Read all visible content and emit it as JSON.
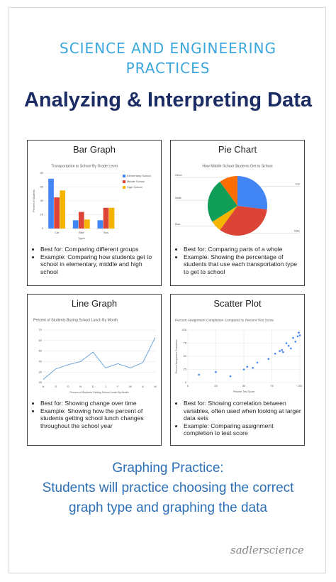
{
  "header": {
    "subtitle_lines": [
      "SCIENCE AND ENGINEERING",
      "PRACTICES"
    ],
    "title": "Analyzing & Interpreting Data"
  },
  "panels": [
    {
      "heading": "Bar Graph",
      "chart": {
        "type": "bar",
        "title": "Transportation to School By Grade Level",
        "xlabel": "Types",
        "ylabel": "Percent of Students",
        "categories": [
          "Car",
          "Bike",
          "Bus"
        ],
        "series": [
          {
            "name": "Elementary School",
            "color": "#4285f4",
            "values": [
              72,
              12,
              12
            ]
          },
          {
            "name": "Middle School",
            "color": "#db4437",
            "values": [
              45,
              24,
              30
            ]
          },
          {
            "name": "High School",
            "color": "#f4b400",
            "values": [
              55,
              13,
              30
            ]
          }
        ],
        "ylim": [
          0,
          80
        ],
        "yticks": [
          0,
          20,
          40,
          60,
          80
        ],
        "grid": true
      },
      "bullets": [
        "Best for: Comparing different groups",
        "Example: Comparing how students get to school in elementary, middle and high school"
      ]
    },
    {
      "heading": "Pie Chart",
      "chart": {
        "type": "pie",
        "title": "How Middle School Students Get to School",
        "categories": [
          "Car",
          "Bike",
          "Bus",
          "Walk",
          "Other"
        ],
        "values": [
          27,
          33,
          6,
          24,
          10
        ],
        "colors": [
          "#4285f4",
          "#db4437",
          "#f4b400",
          "#0f9d58",
          "#ff6d00"
        ]
      },
      "bullets": [
        "Best for: Comparing parts of a whole",
        "Example: Showing the percentage of students that use each transportation type to get to school"
      ]
    },
    {
      "heading": "Line Graph",
      "chart": {
        "type": "line",
        "title": "Percent of Students Buying School Lunch By Month",
        "xlabel": "Percent of Students Getting School Lunch By Month",
        "categories": [
          "A",
          "S",
          "O",
          "N",
          "D",
          "J",
          "F",
          "M",
          "A",
          "M"
        ],
        "values": [
          23,
          33,
          37,
          40,
          49,
          34,
          38,
          34,
          39,
          63
        ],
        "color": "#6fa8dc",
        "ylim": [
          20,
          70
        ],
        "yticks": [
          20,
          30,
          40,
          50,
          60,
          70
        ],
        "grid": true
      },
      "bullets": [
        "Best for: Showing change over time",
        "Example: Showing how the percent of students getting school lunch changes throughout the school year"
      ]
    },
    {
      "heading": "Scatter Plot",
      "chart": {
        "type": "scatter",
        "title": "Percent Assignment Completion Compared to Percent Test Score",
        "xlabel": "Percent Test Score",
        "ylabel": "Percent Assignment Completion",
        "x": [
          10,
          25,
          38,
          50,
          53,
          58,
          62,
          72,
          78,
          82,
          84,
          85,
          88,
          90,
          92,
          94,
          96,
          98,
          99,
          100
        ],
        "values": [
          15,
          20,
          12,
          25,
          30,
          28,
          38,
          45,
          55,
          60,
          62,
          58,
          75,
          70,
          65,
          85,
          78,
          88,
          95,
          90
        ],
        "color": "#4285f4",
        "xlim": [
          0,
          100
        ],
        "ylim": [
          0,
          100
        ],
        "xticks": [
          0,
          25,
          50,
          75,
          100
        ],
        "yticks": [
          0,
          25,
          50,
          75,
          100
        ],
        "grid": true
      },
      "bullets": [
        "Best for: Showing correlation between variables, often used when looking at larger data sets",
        "Example: Comparing assignment completion to test score"
      ]
    }
  ],
  "footer": {
    "heading": "Graphing Practice:",
    "lines": [
      "Students will practice choosing the correct",
      "graph type and graphing the data"
    ],
    "signature": "sadlerscience"
  }
}
